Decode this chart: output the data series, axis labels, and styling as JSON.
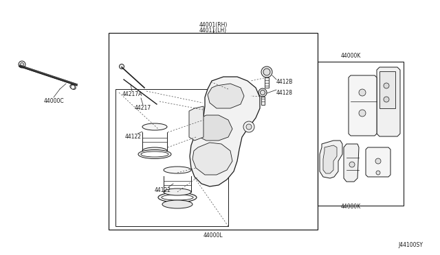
{
  "bg_color": "#ffffff",
  "line_color": "#1a1a1a",
  "fig_width": 6.4,
  "fig_height": 3.72,
  "dpi": 100,
  "labels": {
    "top_line1": "44001(RH)",
    "top_line2": "44011(LH)",
    "bottom": "44000L",
    "bolt": "44000C",
    "p44217A": "44217A",
    "p44217": "44217",
    "p44122a": "44122",
    "p44122b": "44122",
    "p4412B": "4412B",
    "p44128": "44128",
    "p44000K": "44000K",
    "p44080K": "44080K",
    "code": "J44100SY"
  }
}
